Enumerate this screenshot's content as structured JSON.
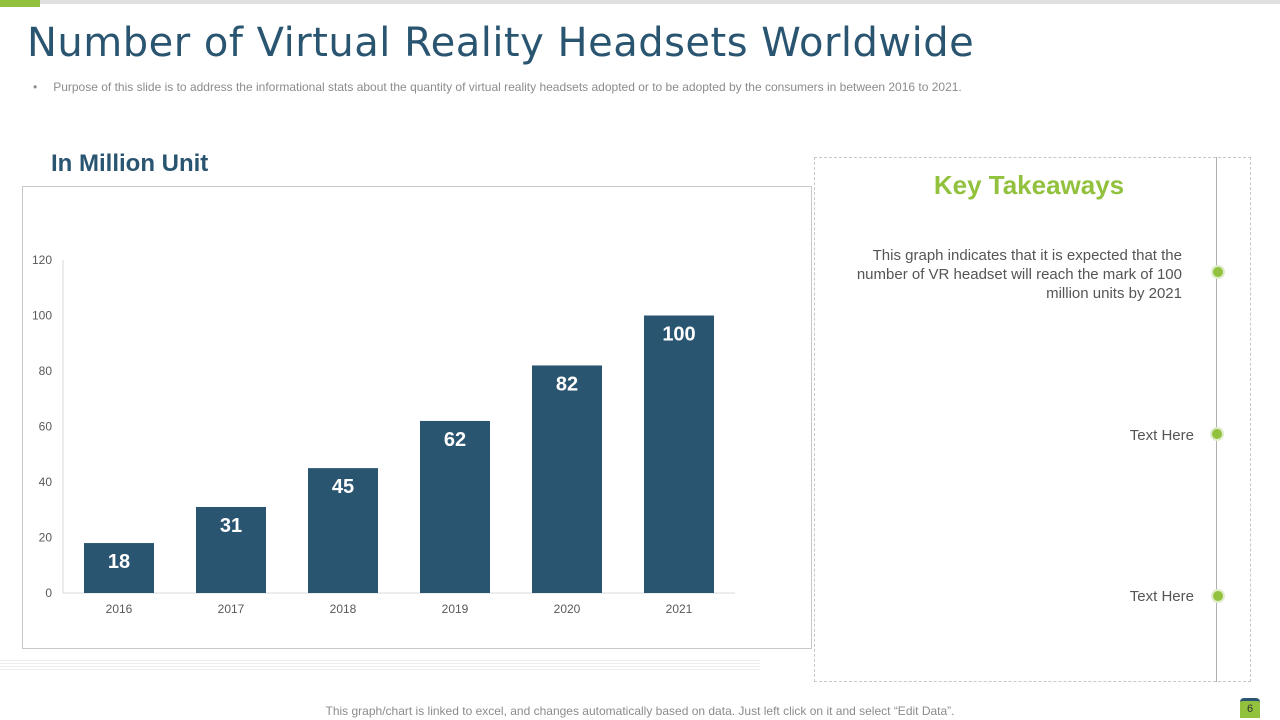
{
  "title": "Number of Virtual Reality Headsets Worldwide",
  "subtitle": "Purpose of this slide is to address the informational stats about the quantity of virtual reality headsets adopted or to be adopted by the consumers in between 2016 to 2021.",
  "bullet": "•",
  "key_takeaways": {
    "title": "Key Takeaways",
    "items": [
      "This graph indicates that it is expected that the number of VR headset will reach the mark of 100 million units by 2021",
      "Text Here",
      "Text Here"
    ]
  },
  "footer": "This graph/chart is linked to excel, and changes automatically based on data. Just left click on it and select “Edit Data”.",
  "page_number": "6",
  "colors": {
    "bar": "#2a5571",
    "accent": "#92c13e"
  },
  "chart_data": {
    "type": "bar",
    "title": "In Million Unit",
    "categories": [
      "2016",
      "2017",
      "2018",
      "2019",
      "2020",
      "2021"
    ],
    "values": [
      18,
      31,
      45,
      62,
      82,
      100
    ],
    "ylim": [
      0,
      120
    ],
    "yticks": [
      0,
      20,
      40,
      60,
      80,
      100,
      120
    ],
    "xlabel": "",
    "ylabel": "",
    "grid": false
  }
}
